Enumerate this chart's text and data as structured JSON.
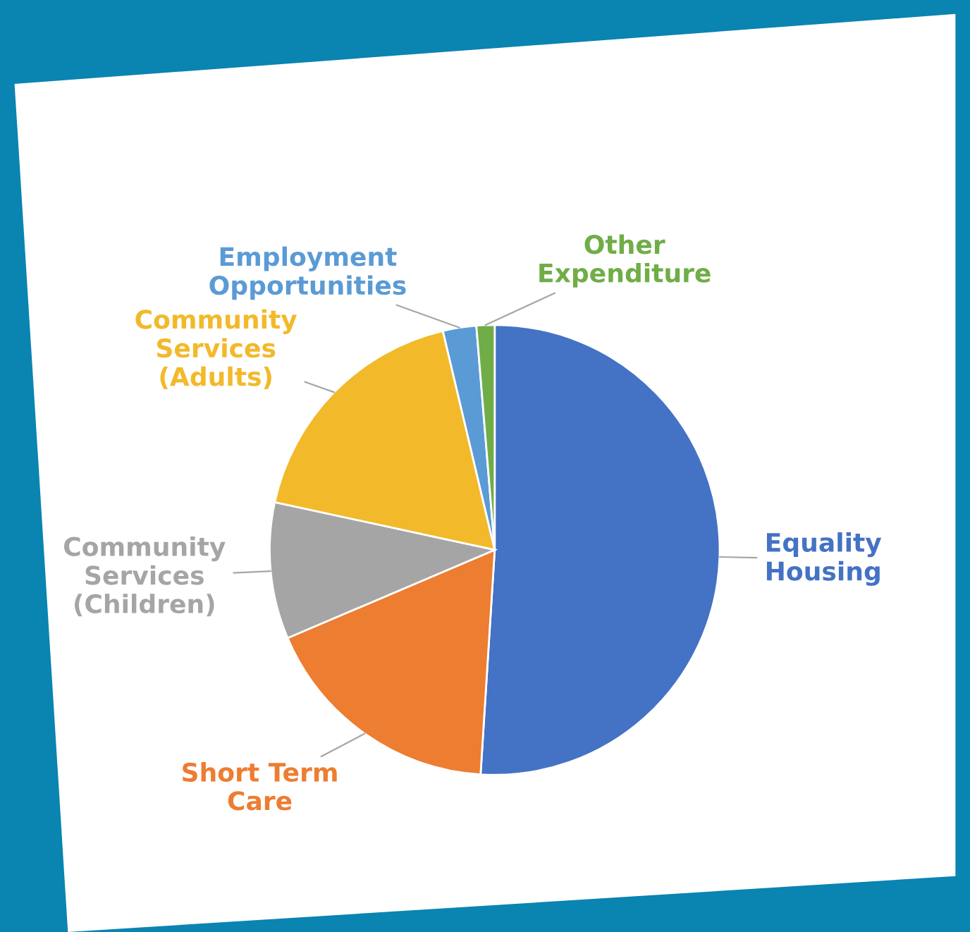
{
  "chart_data": {
    "type": "pie",
    "categories": [
      "Equality\nHousing",
      "Short Term\nCare",
      "Community\nServices\n(Children)",
      "Community\nServices\n(Adults)",
      "Employment\nOpportunities",
      "Other\nExpenditure"
    ],
    "values": [
      51.0,
      17.6,
      9.8,
      17.9,
      2.4,
      1.3
    ],
    "colors": [
      "#4472c4",
      "#ed7d31",
      "#a5a5a5",
      "#f2b92a",
      "#5b9bd5",
      "#70ad47"
    ],
    "legend": false
  }
}
